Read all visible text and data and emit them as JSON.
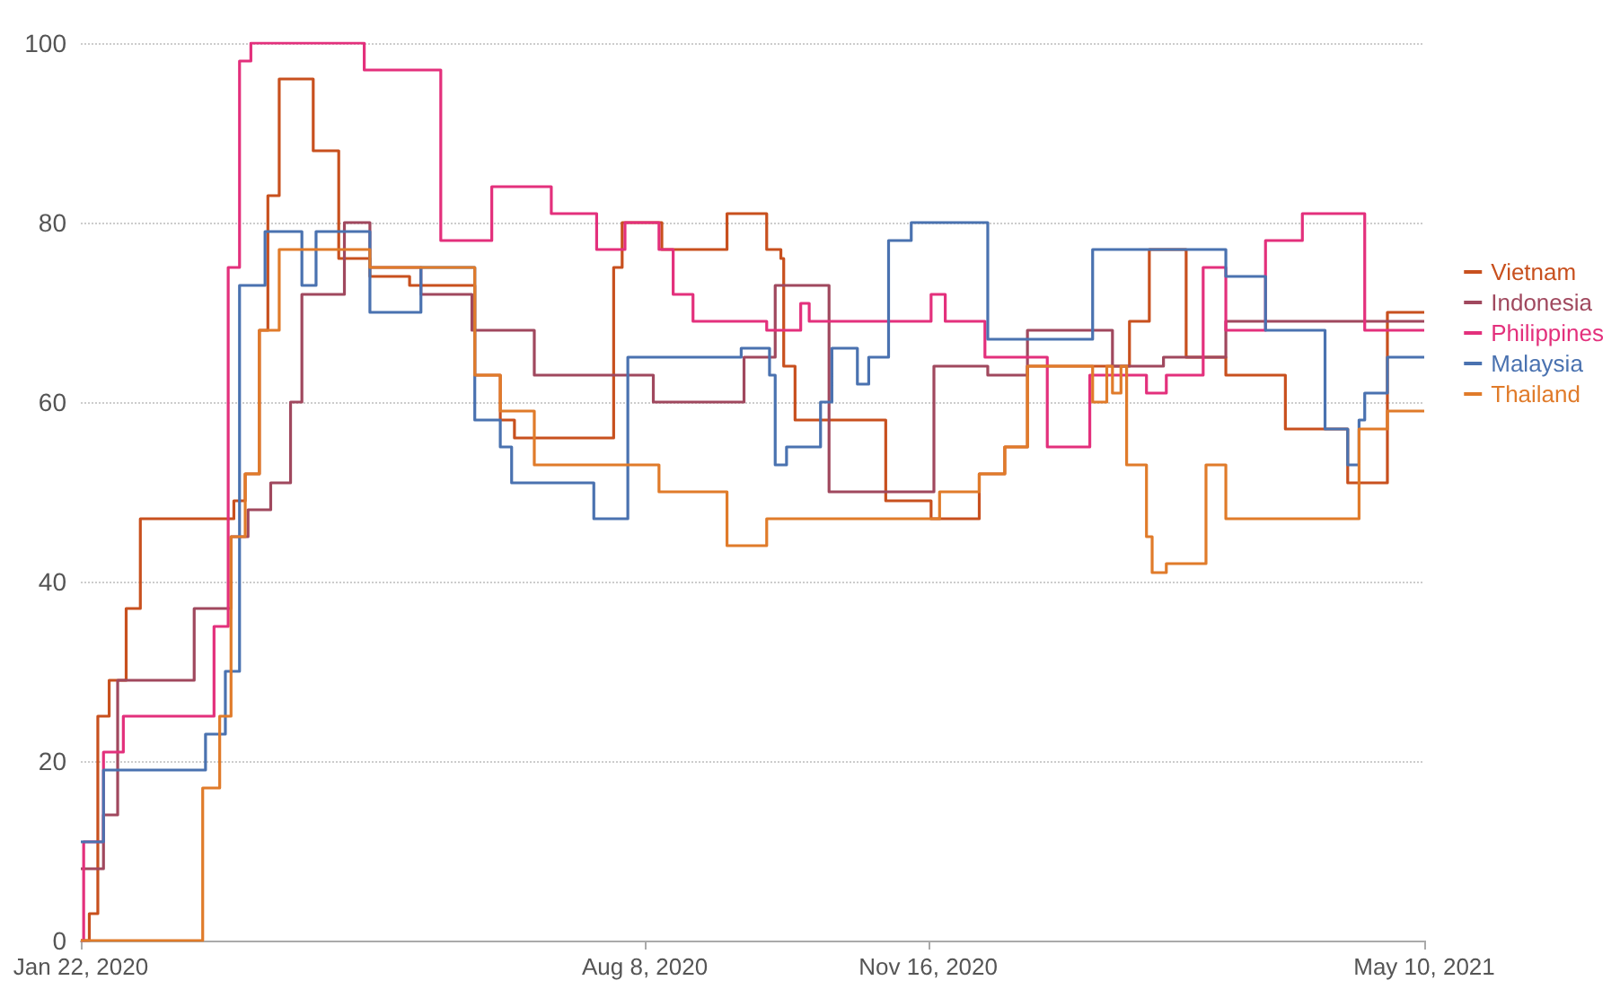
{
  "chart_data": {
    "type": "step",
    "xlim": [
      "2020-01-22",
      "2021-05-10"
    ],
    "xticks": [
      {
        "value": "2020-01-22",
        "label": "Jan 22, 2020"
      },
      {
        "value": "2020-08-08",
        "label": "Aug 8, 2020"
      },
      {
        "value": "2020-11-16",
        "label": "Nov 16, 2020"
      },
      {
        "value": "2021-05-10",
        "label": "May 10, 2021"
      }
    ],
    "ylim": [
      0,
      100
    ],
    "yticks": [
      0,
      20,
      40,
      60,
      80,
      100
    ],
    "grid": "y",
    "legend": "right",
    "series": [
      {
        "name": "Vietnam",
        "color": "#c8501e",
        "x": [
          "2020-01-22",
          "2020-01-25",
          "2020-01-28",
          "2020-02-01",
          "2020-02-07",
          "2020-02-12",
          "2020-03-16",
          "2020-03-20",
          "2020-03-25",
          "2020-03-28",
          "2020-04-01",
          "2020-04-13",
          "2020-04-22",
          "2020-05-03",
          "2020-05-17",
          "2020-06-09",
          "2020-06-18",
          "2020-06-23",
          "2020-07-28",
          "2020-07-31",
          "2020-08-14",
          "2020-09-06",
          "2020-09-20",
          "2020-09-25",
          "2020-09-26",
          "2020-09-30",
          "2020-11-01",
          "2020-11-17",
          "2020-12-04",
          "2020-12-13",
          "2020-12-21",
          "2021-01-26",
          "2021-02-02",
          "2021-02-15",
          "2021-03-01",
          "2021-03-22",
          "2021-04-13",
          "2021-04-27",
          "2021-05-10"
        ],
        "values": [
          0,
          3,
          25,
          29,
          37,
          47,
          49,
          52,
          68,
          83,
          96,
          88,
          76,
          74,
          73,
          63,
          58,
          56,
          75,
          80,
          77,
          81,
          77,
          76,
          64,
          58,
          49,
          47,
          52,
          55,
          64,
          69,
          77,
          65,
          63,
          57,
          51,
          70,
          70
        ]
      },
      {
        "name": "Indonesia",
        "color": "#a0485e",
        "x": [
          "2020-01-22",
          "2020-01-30",
          "2020-02-04",
          "2020-03-02",
          "2020-03-15",
          "2020-03-21",
          "2020-03-29",
          "2020-04-05",
          "2020-04-09",
          "2020-04-24",
          "2020-05-03",
          "2020-05-21",
          "2020-06-08",
          "2020-06-30",
          "2020-08-11",
          "2020-09-12",
          "2020-09-23",
          "2020-10-12",
          "2020-11-18",
          "2020-12-07",
          "2020-12-21",
          "2021-01-20",
          "2021-02-07",
          "2021-03-01",
          "2021-05-10"
        ],
        "values": [
          8,
          14,
          29,
          37,
          45,
          48,
          51,
          60,
          72,
          80,
          75,
          72,
          68,
          63,
          60,
          65,
          73,
          50,
          64,
          63,
          68,
          64,
          65,
          69,
          69
        ]
      },
      {
        "name": "Philippines",
        "color": "#e3307c",
        "x": [
          "2020-01-22",
          "2020-01-23",
          "2020-01-30",
          "2020-02-06",
          "2020-03-09",
          "2020-03-14",
          "2020-03-18",
          "2020-03-22",
          "2020-05-01",
          "2020-05-28",
          "2020-06-15",
          "2020-07-06",
          "2020-07-22",
          "2020-08-01",
          "2020-08-13",
          "2020-08-18",
          "2020-08-25",
          "2020-09-20",
          "2020-10-02",
          "2020-10-05",
          "2020-11-17",
          "2020-11-22",
          "2020-12-06",
          "2020-12-28",
          "2021-01-12",
          "2021-02-01",
          "2021-02-08",
          "2021-02-21",
          "2021-03-01",
          "2021-03-15",
          "2021-03-28",
          "2021-04-19",
          "2021-05-10"
        ],
        "values": [
          0,
          11,
          21,
          25,
          35,
          75,
          98,
          100,
          97,
          78,
          84,
          81,
          77,
          80,
          77,
          72,
          69,
          68,
          71,
          69,
          72,
          69,
          65,
          55,
          63,
          61,
          63,
          75,
          68,
          78,
          81,
          68,
          68
        ]
      },
      {
        "name": "Malaysia",
        "color": "#4a72b0",
        "x": [
          "2020-01-22",
          "2020-01-30",
          "2020-03-06",
          "2020-03-13",
          "2020-03-18",
          "2020-03-27",
          "2020-04-09",
          "2020-04-14",
          "2020-05-03",
          "2020-05-21",
          "2020-06-09",
          "2020-06-18",
          "2020-06-22",
          "2020-07-21",
          "2020-08-02",
          "2020-09-11",
          "2020-09-21",
          "2020-09-23",
          "2020-09-27",
          "2020-10-09",
          "2020-10-13",
          "2020-10-22",
          "2020-10-26",
          "2020-11-02",
          "2020-11-10",
          "2020-12-07",
          "2021-01-13",
          "2021-03-01",
          "2021-03-15",
          "2021-04-05",
          "2021-04-13",
          "2021-04-17",
          "2021-04-19",
          "2021-04-27",
          "2021-05-10"
        ],
        "values": [
          11,
          19,
          23,
          30,
          73,
          79,
          73,
          79,
          70,
          75,
          58,
          55,
          51,
          47,
          65,
          66,
          63,
          53,
          55,
          60,
          66,
          62,
          65,
          78,
          80,
          67,
          77,
          74,
          68,
          57,
          53,
          58,
          61,
          65,
          65
        ]
      },
      {
        "name": "Thailand",
        "color": "#e07b2a",
        "x": [
          "2020-01-22",
          "2020-03-05",
          "2020-03-11",
          "2020-03-15",
          "2020-03-20",
          "2020-03-25",
          "2020-04-01",
          "2020-05-03",
          "2020-06-09",
          "2020-06-18",
          "2020-06-30",
          "2020-08-13",
          "2020-09-06",
          "2020-09-20",
          "2020-11-20",
          "2020-12-04",
          "2020-12-13",
          "2020-12-21",
          "2021-01-13",
          "2021-01-18",
          "2021-01-20",
          "2021-01-23",
          "2021-01-25",
          "2021-02-01",
          "2021-02-03",
          "2021-02-08",
          "2021-02-22",
          "2021-03-01",
          "2021-04-17",
          "2021-04-27",
          "2021-05-10"
        ],
        "values": [
          0,
          17,
          25,
          45,
          52,
          68,
          77,
          75,
          63,
          59,
          53,
          50,
          44,
          47,
          50,
          52,
          55,
          64,
          60,
          64,
          61,
          64,
          53,
          45,
          41,
          42,
          53,
          47,
          57,
          59,
          59
        ]
      }
    ]
  }
}
